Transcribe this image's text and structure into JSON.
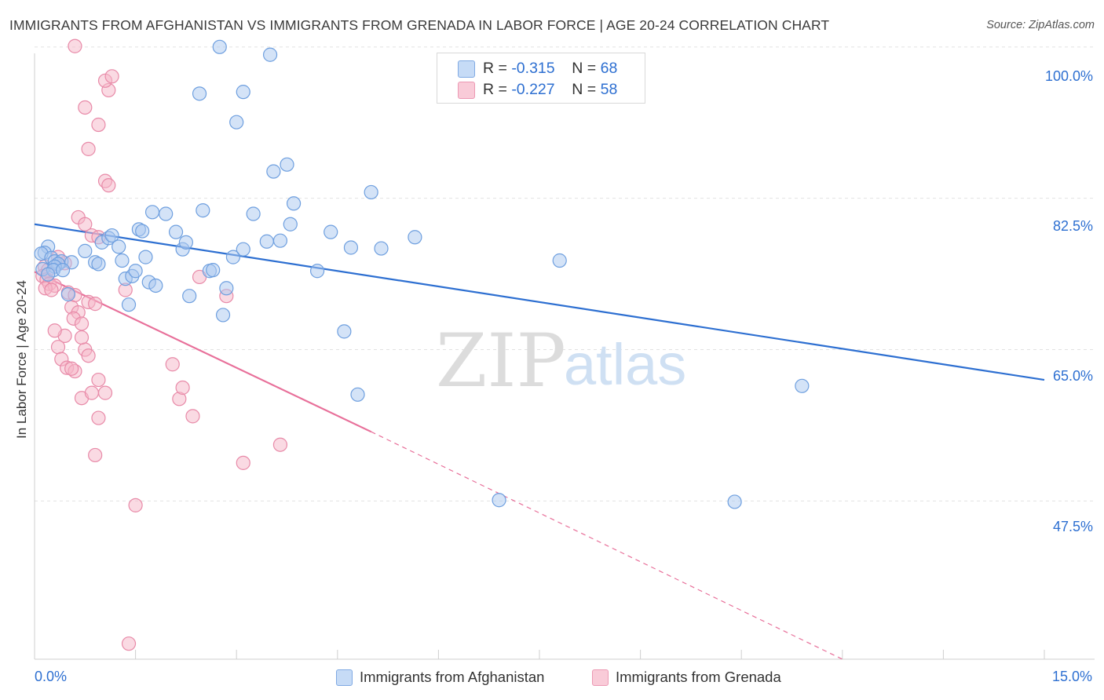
{
  "header": {
    "title": "IMMIGRANTS FROM AFGHANISTAN VS IMMIGRANTS FROM GRENADA IN LABOR FORCE | AGE 20-24 CORRELATION CHART",
    "source": "Source: ZipAtlas.com"
  },
  "watermark": {
    "zip": "ZIP",
    "atlas": "atlas"
  },
  "legend": {
    "afghanistan": {
      "r_label": "R = ",
      "r_value": "-0.315",
      "n_label": "N = ",
      "n_value": "68",
      "color": "#a9c8f0"
    },
    "grenada": {
      "r_label": "R = ",
      "r_value": "-0.227",
      "n_label": "N = ",
      "n_value": "58",
      "color": "#f6b5c8"
    }
  },
  "chart_data": {
    "type": "scatter",
    "ylabel": "In Labor Force | Age 20-24",
    "xlabel": "",
    "xlim": [
      0,
      15
    ],
    "ylim": [
      29.2,
      101.8
    ],
    "x_tick_labels": [
      "0.0%",
      "15.0%"
    ],
    "y_ticks": [
      47.5,
      65.0,
      82.5,
      100.0
    ],
    "y_tick_labels": [
      "47.5%",
      "65.0%",
      "82.5%",
      "100.0%"
    ],
    "grid": "horizontal dashed",
    "series": [
      {
        "name": "Immigrants from Afghanistan",
        "color": "#a9c8f0",
        "stroke": "#6e9fdf",
        "trend": {
          "x": [
            0.0,
            15.0
          ],
          "y": [
            79.5,
            61.5
          ],
          "color": "#2d6fd1"
        },
        "points": [
          [
            0.2,
            76.9
          ],
          [
            0.15,
            76.2
          ],
          [
            0.1,
            76.1
          ],
          [
            0.25,
            75.6
          ],
          [
            0.3,
            75.2
          ],
          [
            0.4,
            75.2
          ],
          [
            0.55,
            75.1
          ],
          [
            0.35,
            74.9
          ],
          [
            0.3,
            74.6
          ],
          [
            0.12,
            74.3
          ],
          [
            0.28,
            74.2
          ],
          [
            0.42,
            74.2
          ],
          [
            0.2,
            73.7
          ],
          [
            0.5,
            71.4
          ],
          [
            0.75,
            76.4
          ],
          [
            0.9,
            75.1
          ],
          [
            0.95,
            74.9
          ],
          [
            1.0,
            77.4
          ],
          [
            1.1,
            77.9
          ],
          [
            1.15,
            78.2
          ],
          [
            1.25,
            76.9
          ],
          [
            1.3,
            75.3
          ],
          [
            1.35,
            73.2
          ],
          [
            1.45,
            73.5
          ],
          [
            1.5,
            74.1
          ],
          [
            1.4,
            70.2
          ],
          [
            1.55,
            78.9
          ],
          [
            1.6,
            78.7
          ],
          [
            1.65,
            75.7
          ],
          [
            1.7,
            72.8
          ],
          [
            1.8,
            72.4
          ],
          [
            1.75,
            80.9
          ],
          [
            1.95,
            80.7
          ],
          [
            2.1,
            78.6
          ],
          [
            2.2,
            76.6
          ],
          [
            2.25,
            77.4
          ],
          [
            2.3,
            71.2
          ],
          [
            2.45,
            94.6
          ],
          [
            2.5,
            81.1
          ],
          [
            2.6,
            74.1
          ],
          [
            2.65,
            74.2
          ],
          [
            2.75,
            100.0
          ],
          [
            2.8,
            69.0
          ],
          [
            2.85,
            72.1
          ],
          [
            2.95,
            75.7
          ],
          [
            3.0,
            91.3
          ],
          [
            3.1,
            94.8
          ],
          [
            3.1,
            76.6
          ],
          [
            3.25,
            80.7
          ],
          [
            3.45,
            77.5
          ],
          [
            3.5,
            99.1
          ],
          [
            3.55,
            85.6
          ],
          [
            3.65,
            77.6
          ],
          [
            3.75,
            86.4
          ],
          [
            3.8,
            79.5
          ],
          [
            3.85,
            81.9
          ],
          [
            4.2,
            74.1
          ],
          [
            4.4,
            78.6
          ],
          [
            4.6,
            67.1
          ],
          [
            4.7,
            76.8
          ],
          [
            4.8,
            59.8
          ],
          [
            5.0,
            83.2
          ],
          [
            5.15,
            76.7
          ],
          [
            5.65,
            78.0
          ],
          [
            6.9,
            47.6
          ],
          [
            7.8,
            75.3
          ],
          [
            10.4,
            47.4
          ],
          [
            11.4,
            60.8
          ]
        ]
      },
      {
        "name": "Immigrants from Grenada",
        "color": "#f6b5c8",
        "stroke": "#e88aa8",
        "trend": {
          "x": [
            0.0,
            5.0
          ],
          "y": [
            74.0,
            55.5
          ],
          "color": "#e8709a"
        },
        "trend_dashed": {
          "x": [
            5.0,
            12.0
          ],
          "y": [
            55.5,
            29.2
          ],
          "color": "#e8709a"
        },
        "points": [
          [
            0.15,
            74.6
          ],
          [
            0.2,
            74.2
          ],
          [
            0.12,
            73.5
          ],
          [
            0.18,
            73.1
          ],
          [
            0.22,
            72.6
          ],
          [
            0.3,
            72.4
          ],
          [
            0.16,
            72.1
          ],
          [
            0.25,
            71.9
          ],
          [
            0.35,
            75.7
          ],
          [
            0.45,
            75.0
          ],
          [
            0.5,
            71.6
          ],
          [
            0.6,
            71.3
          ],
          [
            0.55,
            69.9
          ],
          [
            0.65,
            69.3
          ],
          [
            0.58,
            68.6
          ],
          [
            0.7,
            68.0
          ],
          [
            0.45,
            66.6
          ],
          [
            0.35,
            65.3
          ],
          [
            0.4,
            63.9
          ],
          [
            0.48,
            62.9
          ],
          [
            0.6,
            62.5
          ],
          [
            0.75,
            65.0
          ],
          [
            0.8,
            64.3
          ],
          [
            0.7,
            59.4
          ],
          [
            0.85,
            60.0
          ],
          [
            0.95,
            57.1
          ],
          [
            0.9,
            52.8
          ],
          [
            0.95,
            61.5
          ],
          [
            1.05,
            60.0
          ],
          [
            0.65,
            80.3
          ],
          [
            0.75,
            79.5
          ],
          [
            0.85,
            78.2
          ],
          [
            0.8,
            70.5
          ],
          [
            0.9,
            70.3
          ],
          [
            1.05,
            84.5
          ],
          [
            1.1,
            84.0
          ],
          [
            0.95,
            91.0
          ],
          [
            1.1,
            95.0
          ],
          [
            1.05,
            96.1
          ],
          [
            1.15,
            96.6
          ],
          [
            0.75,
            93.0
          ],
          [
            0.8,
            88.2
          ],
          [
            0.95,
            78.0
          ],
          [
            0.6,
            100.1
          ],
          [
            1.35,
            71.9
          ],
          [
            1.5,
            47.0
          ],
          [
            1.4,
            31.0
          ],
          [
            2.05,
            63.3
          ],
          [
            2.15,
            59.3
          ],
          [
            2.2,
            60.6
          ],
          [
            2.35,
            57.3
          ],
          [
            2.45,
            73.4
          ],
          [
            2.85,
            71.2
          ],
          [
            3.1,
            51.9
          ],
          [
            3.65,
            54.0
          ],
          [
            0.3,
            67.2
          ],
          [
            0.7,
            66.4
          ],
          [
            0.55,
            62.8
          ]
        ]
      }
    ]
  },
  "bottom_legend": {
    "afghanistan_label": "Immigrants from Afghanistan",
    "grenada_label": "Immigrants from Grenada"
  }
}
